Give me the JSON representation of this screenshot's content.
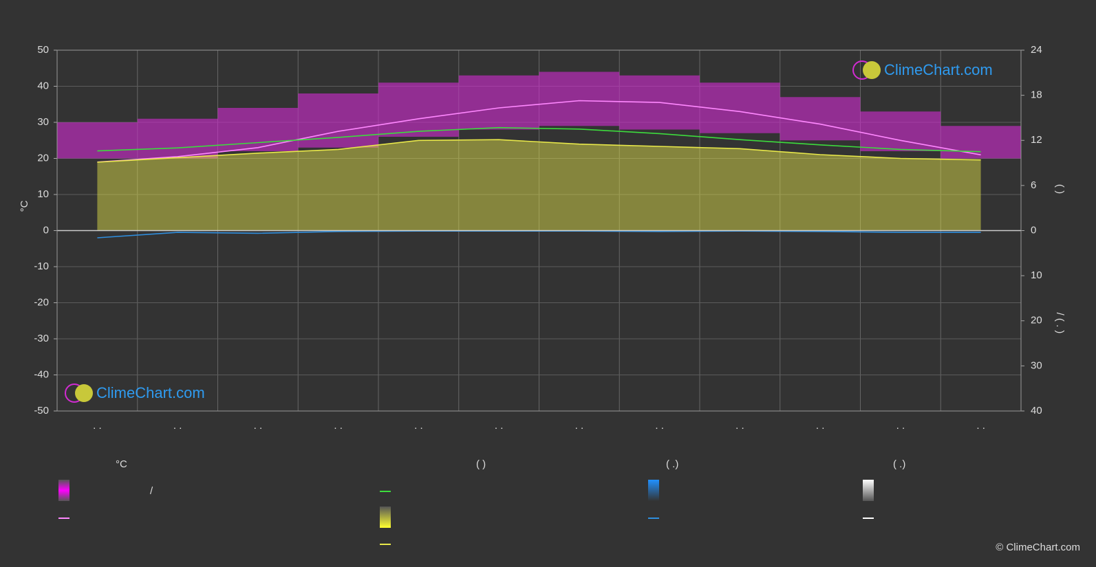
{
  "chart_data": {
    "type": "line",
    "categories": [
      ". .",
      ". .",
      ". .",
      ". .",
      ". .",
      ". .",
      ". .",
      ". .",
      ". .",
      ". .",
      ". .",
      ". ."
    ],
    "ylabel": "°C",
    "ylim": [
      -50,
      50
    ],
    "yticks": [
      -50,
      -40,
      -30,
      -20,
      -10,
      0,
      10,
      20,
      30,
      40,
      50
    ],
    "y2lim": [
      -24,
      24
    ],
    "y2ticks": [
      0,
      6,
      12,
      18,
      24
    ],
    "y2label": "(   )",
    "y3lim": [
      40,
      -40
    ],
    "y3ticks": [
      10,
      20,
      30,
      40
    ],
    "y3label": "/   ( . )",
    "grid": true,
    "series": [
      {
        "kind": "band",
        "axis": "y",
        "color": "#d22bd2",
        "upper": [
          30,
          31,
          34,
          38,
          41,
          43,
          44,
          43,
          41,
          37,
          33,
          29
        ],
        "lower": [
          20,
          20,
          22,
          23,
          26,
          28,
          29,
          28,
          27,
          25,
          22,
          20
        ]
      },
      {
        "kind": "line",
        "axis": "y",
        "color": "#ff88ff",
        "values": [
          19,
          20.5,
          23,
          27.5,
          31,
          34,
          36,
          35.5,
          33,
          29.5,
          25,
          21
        ]
      },
      {
        "kind": "line",
        "axis": "y2",
        "color": "#3ddc3d",
        "values": [
          10.6,
          11.0,
          11.7,
          12.4,
          13.2,
          13.7,
          13.5,
          12.9,
          12.1,
          11.4,
          10.8,
          10.5
        ]
      },
      {
        "kind": "area",
        "axis": "y2",
        "color": "#e8e84a",
        "values": [
          9.1,
          9.7,
          10.3,
          10.8,
          12.0,
          12.1,
          11.5,
          11.2,
          10.9,
          10.1,
          9.6,
          9.4
        ]
      },
      {
        "kind": "line",
        "axis": "y3",
        "color": "#2f8fdf",
        "values": [
          1.6,
          0.4,
          0.6,
          0.2,
          0.1,
          0.1,
          0.1,
          0.2,
          0.1,
          0.2,
          0.4,
          0.4
        ]
      }
    ],
    "legend": {
      "headers": [
        "°C",
        "(           )",
        "(    .)",
        "(    .)"
      ],
      "slash": "/"
    },
    "watermark": "ClimeChart.com",
    "copyright": "© ClimeChart.com"
  }
}
